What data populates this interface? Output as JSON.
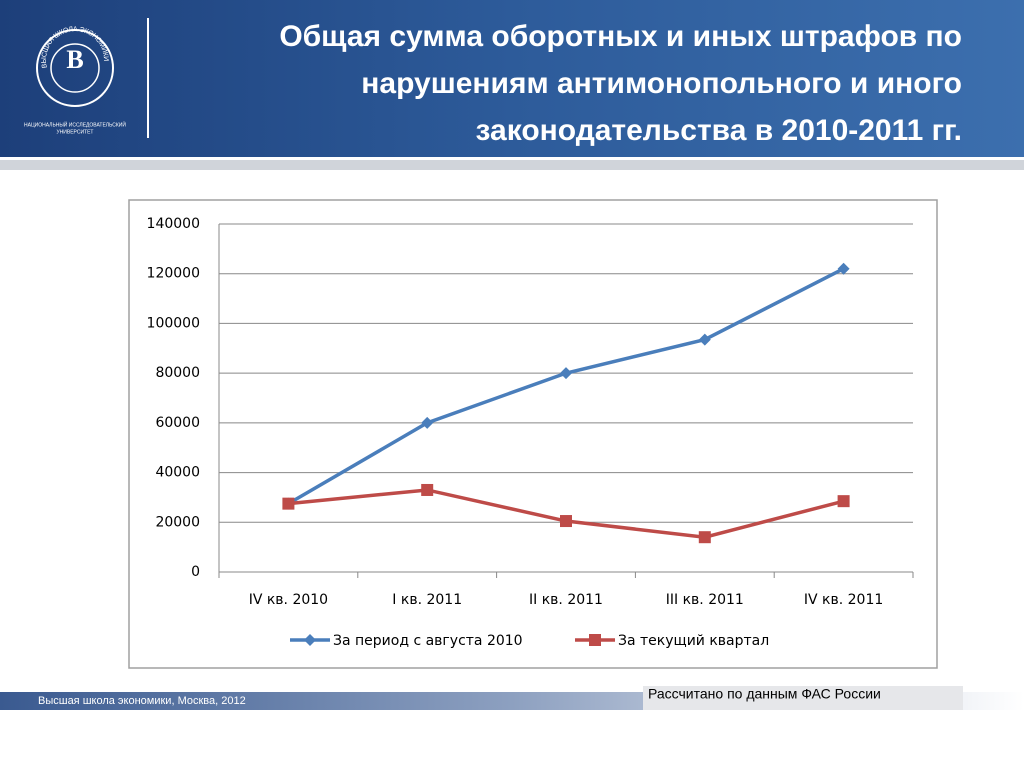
{
  "header": {
    "title_lines": [
      "Общая сумма оборотных и иных штрафов по",
      "нарушениям антимонопольного и иного",
      "законодательства в 2010-2011 гг."
    ],
    "logo_ring": "ВЫСШАЯ ШКОЛА ЭКОНОМИКИ",
    "logo_caption": [
      "НАЦИОНАЛЬНЫЙ ИССЛЕДОВАТЕЛЬСКИЙ",
      "УНИВЕРСИТЕТ"
    ]
  },
  "footer": {
    "text": "Высшая школа экономики, Москва, 2012",
    "source": "Рассчитано по данным ФАС России"
  },
  "chart_data": {
    "type": "line",
    "categories": [
      "IV кв. 2010",
      "I кв. 2011",
      "II кв. 2011",
      "III кв. 2011",
      "IV кв. 2011"
    ],
    "series": [
      {
        "name": "За период с августа 2010",
        "color": "#4a7ebb",
        "marker": "diamond",
        "values": [
          27500,
          60000,
          80000,
          93500,
          122000
        ]
      },
      {
        "name": "За текущий квартал",
        "color": "#be4b48",
        "marker": "square",
        "values": [
          27500,
          33000,
          20500,
          14000,
          28500
        ]
      }
    ],
    "ylim": [
      0,
      140000
    ],
    "yticks": [
      0,
      20000,
      40000,
      60000,
      80000,
      100000,
      120000,
      140000
    ],
    "grid": true,
    "legend": "bottom"
  }
}
